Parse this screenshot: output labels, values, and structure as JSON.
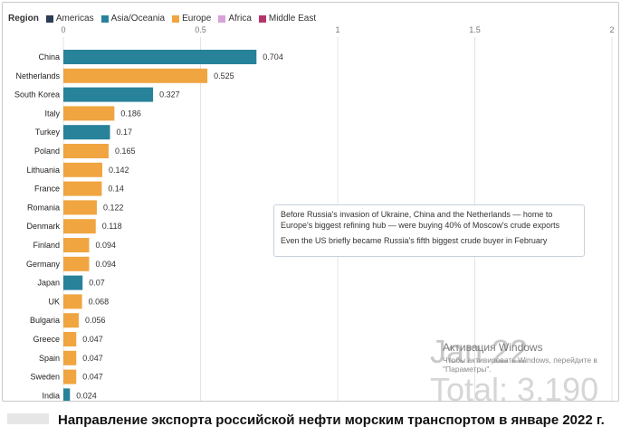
{
  "caption": "Направление экспорта российской нефти морским транспортом в январе 2022 г.",
  "watermark": {
    "big": "Jan 22",
    "sub": "Total: 3,190",
    "activation_title": "Активация Windows",
    "activation_line1": "Чтобы активировать Windows, перейдите в",
    "activation_line2": "\"Параметры\"."
  },
  "annotation": {
    "line1": "Before Russia's invasion of Ukraine, China and the Netherlands — home to Europe's biggest refining hub — were buying 40% of Moscow's crude exports",
    "line2": "Even the US briefly became Russia's fifth biggest crude buyer in February"
  },
  "chart_data": {
    "type": "bar",
    "orientation": "horizontal",
    "legend": {
      "title": "Region",
      "position": "top-left",
      "entries": [
        {
          "name": "Americas",
          "color": "#2b3e55"
        },
        {
          "name": "Asia/Oceania",
          "color": "#27829a"
        },
        {
          "name": "Europe",
          "color": "#f0a541"
        },
        {
          "name": "Africa",
          "color": "#d7a3d8"
        },
        {
          "name": "Middle East",
          "color": "#b5346c"
        }
      ]
    },
    "xlim": [
      0,
      2
    ],
    "xticks": [
      "0",
      "0.5",
      "1",
      "1.5",
      "2"
    ],
    "xtick_values": [
      0,
      0.5,
      1,
      1.5,
      2
    ],
    "grid": true,
    "bars": [
      {
        "category": "China",
        "value": 0.704,
        "label": "0.704",
        "region": "Asia/Oceania"
      },
      {
        "category": "Netherlands",
        "value": 0.525,
        "label": "0.525",
        "region": "Europe"
      },
      {
        "category": "South Korea",
        "value": 0.327,
        "label": "0.327",
        "region": "Asia/Oceania"
      },
      {
        "category": "Italy",
        "value": 0.186,
        "label": "0.186",
        "region": "Europe"
      },
      {
        "category": "Turkey",
        "value": 0.17,
        "label": "0.17",
        "region": "Asia/Oceania"
      },
      {
        "category": "Poland",
        "value": 0.165,
        "label": "0.165",
        "region": "Europe"
      },
      {
        "category": "Lithuania",
        "value": 0.142,
        "label": "0.142",
        "region": "Europe"
      },
      {
        "category": "France",
        "value": 0.14,
        "label": "0.14",
        "region": "Europe"
      },
      {
        "category": "Romania",
        "value": 0.122,
        "label": "0.122",
        "region": "Europe"
      },
      {
        "category": "Denmark",
        "value": 0.118,
        "label": "0.118",
        "region": "Europe"
      },
      {
        "category": "Finland",
        "value": 0.094,
        "label": "0.094",
        "region": "Europe"
      },
      {
        "category": "Germany",
        "value": 0.094,
        "label": "0.094",
        "region": "Europe"
      },
      {
        "category": "Japan",
        "value": 0.07,
        "label": "0.07",
        "region": "Asia/Oceania"
      },
      {
        "category": "UK",
        "value": 0.068,
        "label": "0.068",
        "region": "Europe"
      },
      {
        "category": "Bulgaria",
        "value": 0.056,
        "label": "0.056",
        "region": "Europe"
      },
      {
        "category": "Greece",
        "value": 0.047,
        "label": "0.047",
        "region": "Europe"
      },
      {
        "category": "Spain",
        "value": 0.047,
        "label": "0.047",
        "region": "Europe"
      },
      {
        "category": "Sweden",
        "value": 0.047,
        "label": "0.047",
        "region": "Europe"
      },
      {
        "category": "India",
        "value": 0.024,
        "label": "0.024",
        "region": "Asia/Oceania"
      }
    ]
  }
}
